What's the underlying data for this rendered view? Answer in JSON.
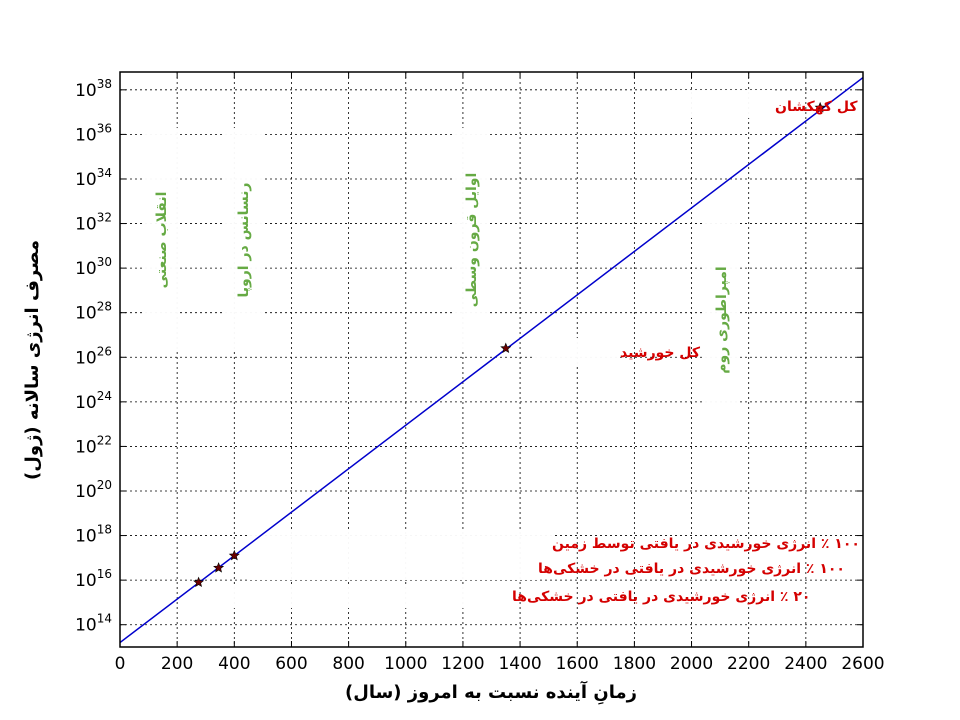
{
  "chart_data": {
    "type": "line",
    "xlabel": "زمانِ آینده نسبت به امروز (سال)",
    "ylabel": "مصرف انرژی سالانه (ژول)",
    "xlim": [
      0,
      2600
    ],
    "ylim_exp": [
      13,
      38.8
    ],
    "y_scale": "log10",
    "grid": true,
    "x_ticks": [
      0,
      200,
      400,
      600,
      800,
      1000,
      1200,
      1400,
      1600,
      1800,
      2000,
      2200,
      2400,
      2600
    ],
    "y_tick_base": "10",
    "y_tick_exponents": [
      14,
      16,
      18,
      20,
      22,
      24,
      26,
      28,
      30,
      32,
      34,
      36,
      38
    ],
    "line": {
      "x": [
        0,
        2600
      ],
      "y_exp": [
        13.2,
        38.55
      ],
      "color": "#0000cc"
    },
    "points": [
      {
        "x": 275,
        "y_exp": 15.9,
        "label": "۲۰ ٪ انرژی خورشیدی در یافتی در خشکی‌ها"
      },
      {
        "x": 345,
        "y_exp": 16.55,
        "label": "۱۰۰ ٪ انرژی خورشیدی در یافتی در خشکی‌ها"
      },
      {
        "x": 400,
        "y_exp": 17.1,
        "label": "۱۰۰ ٪ انرژی خورشیدی در یافتی توسط زمین"
      },
      {
        "x": 1350,
        "y_exp": 26.4,
        "label": "کل خورشید"
      },
      {
        "x": 2450,
        "y_exp": 37.2,
        "label": "کل کهکشان"
      }
    ],
    "marker_color": "#6b0000",
    "era_labels": [
      {
        "text": "انقلاب صنعتی",
        "x": 150,
        "y_exp": 31.5,
        "color": "#66aa44"
      },
      {
        "text": "رنسانس در اروپا",
        "x": 430,
        "y_exp": 31.5,
        "color": "#66aa44"
      },
      {
        "text": "اوایل قرون وسطی",
        "x": 1230,
        "y_exp": 32.0,
        "color": "#66aa44"
      },
      {
        "text": "امپراطوری روم",
        "x": 2100,
        "y_exp": 26.0,
        "color": "#66aa44"
      }
    ]
  }
}
